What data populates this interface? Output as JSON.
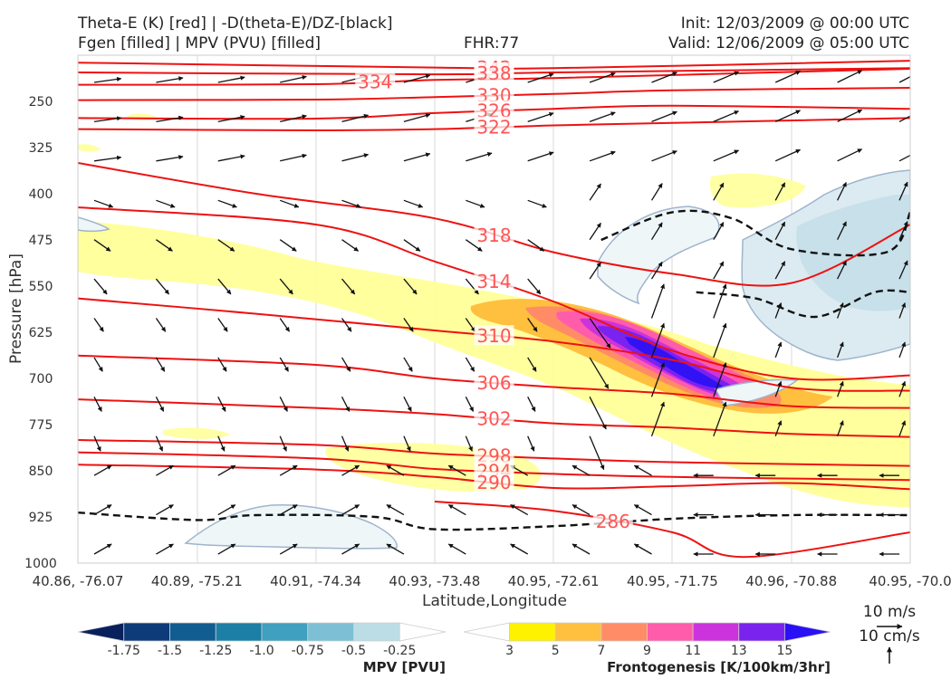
{
  "header": {
    "title_left_1": "Theta-E (K) [red] | -D(theta-E)/DZ-[black]",
    "title_left_2": "Fgen [filled] | MPV (PVU) [filled]",
    "title_center": "FHR:77",
    "title_right_1": "Init: 12/03/2009 @ 00:00 UTC",
    "title_right_2": "Valid: 12/06/2009 @ 05:00 UTC"
  },
  "axes": {
    "ylabel": "Pressure [hPa]",
    "xlabel": "Latitude,Longitude"
  },
  "vector_key": {
    "horizontal": "10 m/s",
    "vertical": "10 cm/s"
  },
  "colorbars": {
    "mpv": {
      "label": "MPV [PVU]",
      "ticks": [
        "-1.75",
        "-1.5",
        "-1.25",
        "-1.0",
        "-0.75",
        "-0.5",
        "-0.25"
      ],
      "colors": [
        "#08205c",
        "#0d3a78",
        "#115c90",
        "#1b7fa6",
        "#3fa0c0",
        "#7dbfd4",
        "#bddde6",
        "#ffffff"
      ]
    },
    "fgen": {
      "label": "Frontogenesis [K/100km/3hr]",
      "ticks": [
        "3",
        "5",
        "7",
        "9",
        "11",
        "13",
        "15"
      ],
      "colors": [
        "#ffffff",
        "#fff200",
        "#ffbf3f",
        "#ff8c66",
        "#ff5cab",
        "#cc33dd",
        "#7a22ee",
        "#2a10f5"
      ]
    }
  },
  "chart_data": {
    "type": "contour",
    "y_scale": "pressure (inverted, top 175 hPa)",
    "ylim": [
      1000,
      175
    ],
    "y_ticks": [
      250,
      325,
      400,
      475,
      550,
      625,
      700,
      775,
      850,
      925,
      1000
    ],
    "x_ticks": [
      "40.86, -76.07",
      "40.89, -75.21",
      "40.91, -74.34",
      "40.93, -73.48",
      "40.95, -72.61",
      "40.95, -71.75",
      "40.96, -70.88",
      "40.95, -70.0"
    ],
    "x_range": [
      0,
      7
    ],
    "theta_e_contours": [
      {
        "label": "342",
        "points": [
          [
            0,
            187
          ],
          [
            3,
            195
          ],
          [
            4,
            196
          ],
          [
            7,
            184
          ]
        ]
      },
      {
        "label": "338",
        "points": [
          [
            0,
            203
          ],
          [
            3,
            206
          ],
          [
            4,
            203
          ],
          [
            7,
            196
          ]
        ]
      },
      {
        "label": "334",
        "points": [
          [
            0,
            223
          ],
          [
            2,
            222
          ],
          [
            3,
            215
          ],
          [
            4,
            212
          ],
          [
            7,
            197
          ]
        ]
      },
      {
        "label": "330",
        "points": [
          [
            0,
            248
          ],
          [
            2,
            247
          ],
          [
            3,
            243
          ],
          [
            4,
            238
          ],
          [
            5,
            232
          ],
          [
            7,
            228
          ]
        ]
      },
      {
        "label": "326",
        "points": [
          [
            0,
            277
          ],
          [
            2,
            278
          ],
          [
            3,
            269
          ],
          [
            4,
            262
          ],
          [
            5,
            257
          ],
          [
            7,
            262
          ]
        ]
      },
      {
        "label": "322",
        "points": [
          [
            0,
            295
          ],
          [
            2,
            297
          ],
          [
            3,
            295
          ],
          [
            4,
            289
          ],
          [
            5,
            285
          ],
          [
            7,
            277
          ]
        ]
      },
      {
        "label": "318",
        "points": [
          [
            0,
            350
          ],
          [
            1.5,
            400
          ],
          [
            3,
            440
          ],
          [
            4,
            495
          ],
          [
            5,
            530
          ],
          [
            6,
            545
          ],
          [
            7,
            450
          ]
        ]
      },
      {
        "label": "314",
        "points": [
          [
            0,
            422
          ],
          [
            2,
            450
          ],
          [
            3,
            510
          ],
          [
            4,
            575
          ],
          [
            5,
            655
          ],
          [
            6,
            700
          ],
          [
            7,
            695
          ]
        ]
      },
      {
        "label": "310",
        "points": [
          [
            0,
            570
          ],
          [
            1.5,
            595
          ],
          [
            3,
            622
          ],
          [
            4,
            640
          ],
          [
            5,
            670
          ],
          [
            6,
            715
          ],
          [
            7,
            720
          ]
        ]
      },
      {
        "label": "306",
        "points": [
          [
            0,
            663
          ],
          [
            2,
            678
          ],
          [
            3,
            700
          ],
          [
            4,
            714
          ],
          [
            5,
            725
          ],
          [
            6,
            745
          ],
          [
            7,
            748
          ]
        ]
      },
      {
        "label": "302",
        "points": [
          [
            0,
            734
          ],
          [
            2,
            748
          ],
          [
            3,
            758
          ],
          [
            4,
            773
          ],
          [
            5,
            780
          ],
          [
            6,
            790
          ],
          [
            7,
            795
          ]
        ]
      },
      {
        "label": "298",
        "points": [
          [
            0,
            800
          ],
          [
            2,
            808
          ],
          [
            3,
            822
          ],
          [
            4,
            830
          ],
          [
            5,
            836
          ],
          [
            7,
            842
          ]
        ]
      },
      {
        "label": "294",
        "points": [
          [
            0,
            820
          ],
          [
            2,
            830
          ],
          [
            3,
            847
          ],
          [
            4,
            855
          ],
          [
            5,
            860
          ],
          [
            7,
            865
          ]
        ]
      },
      {
        "label": "290",
        "points": [
          [
            0,
            840
          ],
          [
            2,
            848
          ],
          [
            3,
            860
          ],
          [
            4,
            878
          ],
          [
            5,
            875
          ],
          [
            6,
            870
          ],
          [
            7,
            880
          ]
        ]
      },
      {
        "label": "286",
        "points": [
          [
            3,
            900
          ],
          [
            4,
            915
          ],
          [
            5,
            950
          ],
          [
            5.6,
            990
          ],
          [
            7,
            950
          ]
        ]
      }
    ],
    "stability_contours_dashed": [
      {
        "points": [
          [
            0,
            918
          ],
          [
            1,
            930
          ],
          [
            1.5,
            922
          ],
          [
            2.5,
            925
          ],
          [
            3,
            945
          ],
          [
            4,
            940
          ],
          [
            5,
            928
          ],
          [
            6,
            922
          ],
          [
            7,
            922
          ]
        ]
      },
      {
        "points": [
          [
            4.4,
            475
          ],
          [
            5,
            430
          ],
          [
            5.5,
            440
          ],
          [
            6,
            490
          ],
          [
            6.8,
            495
          ],
          [
            7,
            430
          ]
        ]
      },
      {
        "points": [
          [
            5.2,
            560
          ],
          [
            5.7,
            570
          ],
          [
            6.2,
            600
          ],
          [
            6.7,
            560
          ],
          [
            7,
            560
          ]
        ]
      }
    ],
    "fgen_max_region": {
      "x_center": 5.1,
      "p_center": 690,
      "max_value": 15
    },
    "mpv_min_region": {
      "x_center": 6.2,
      "p_center": 520,
      "min_value": -0.5
    }
  }
}
